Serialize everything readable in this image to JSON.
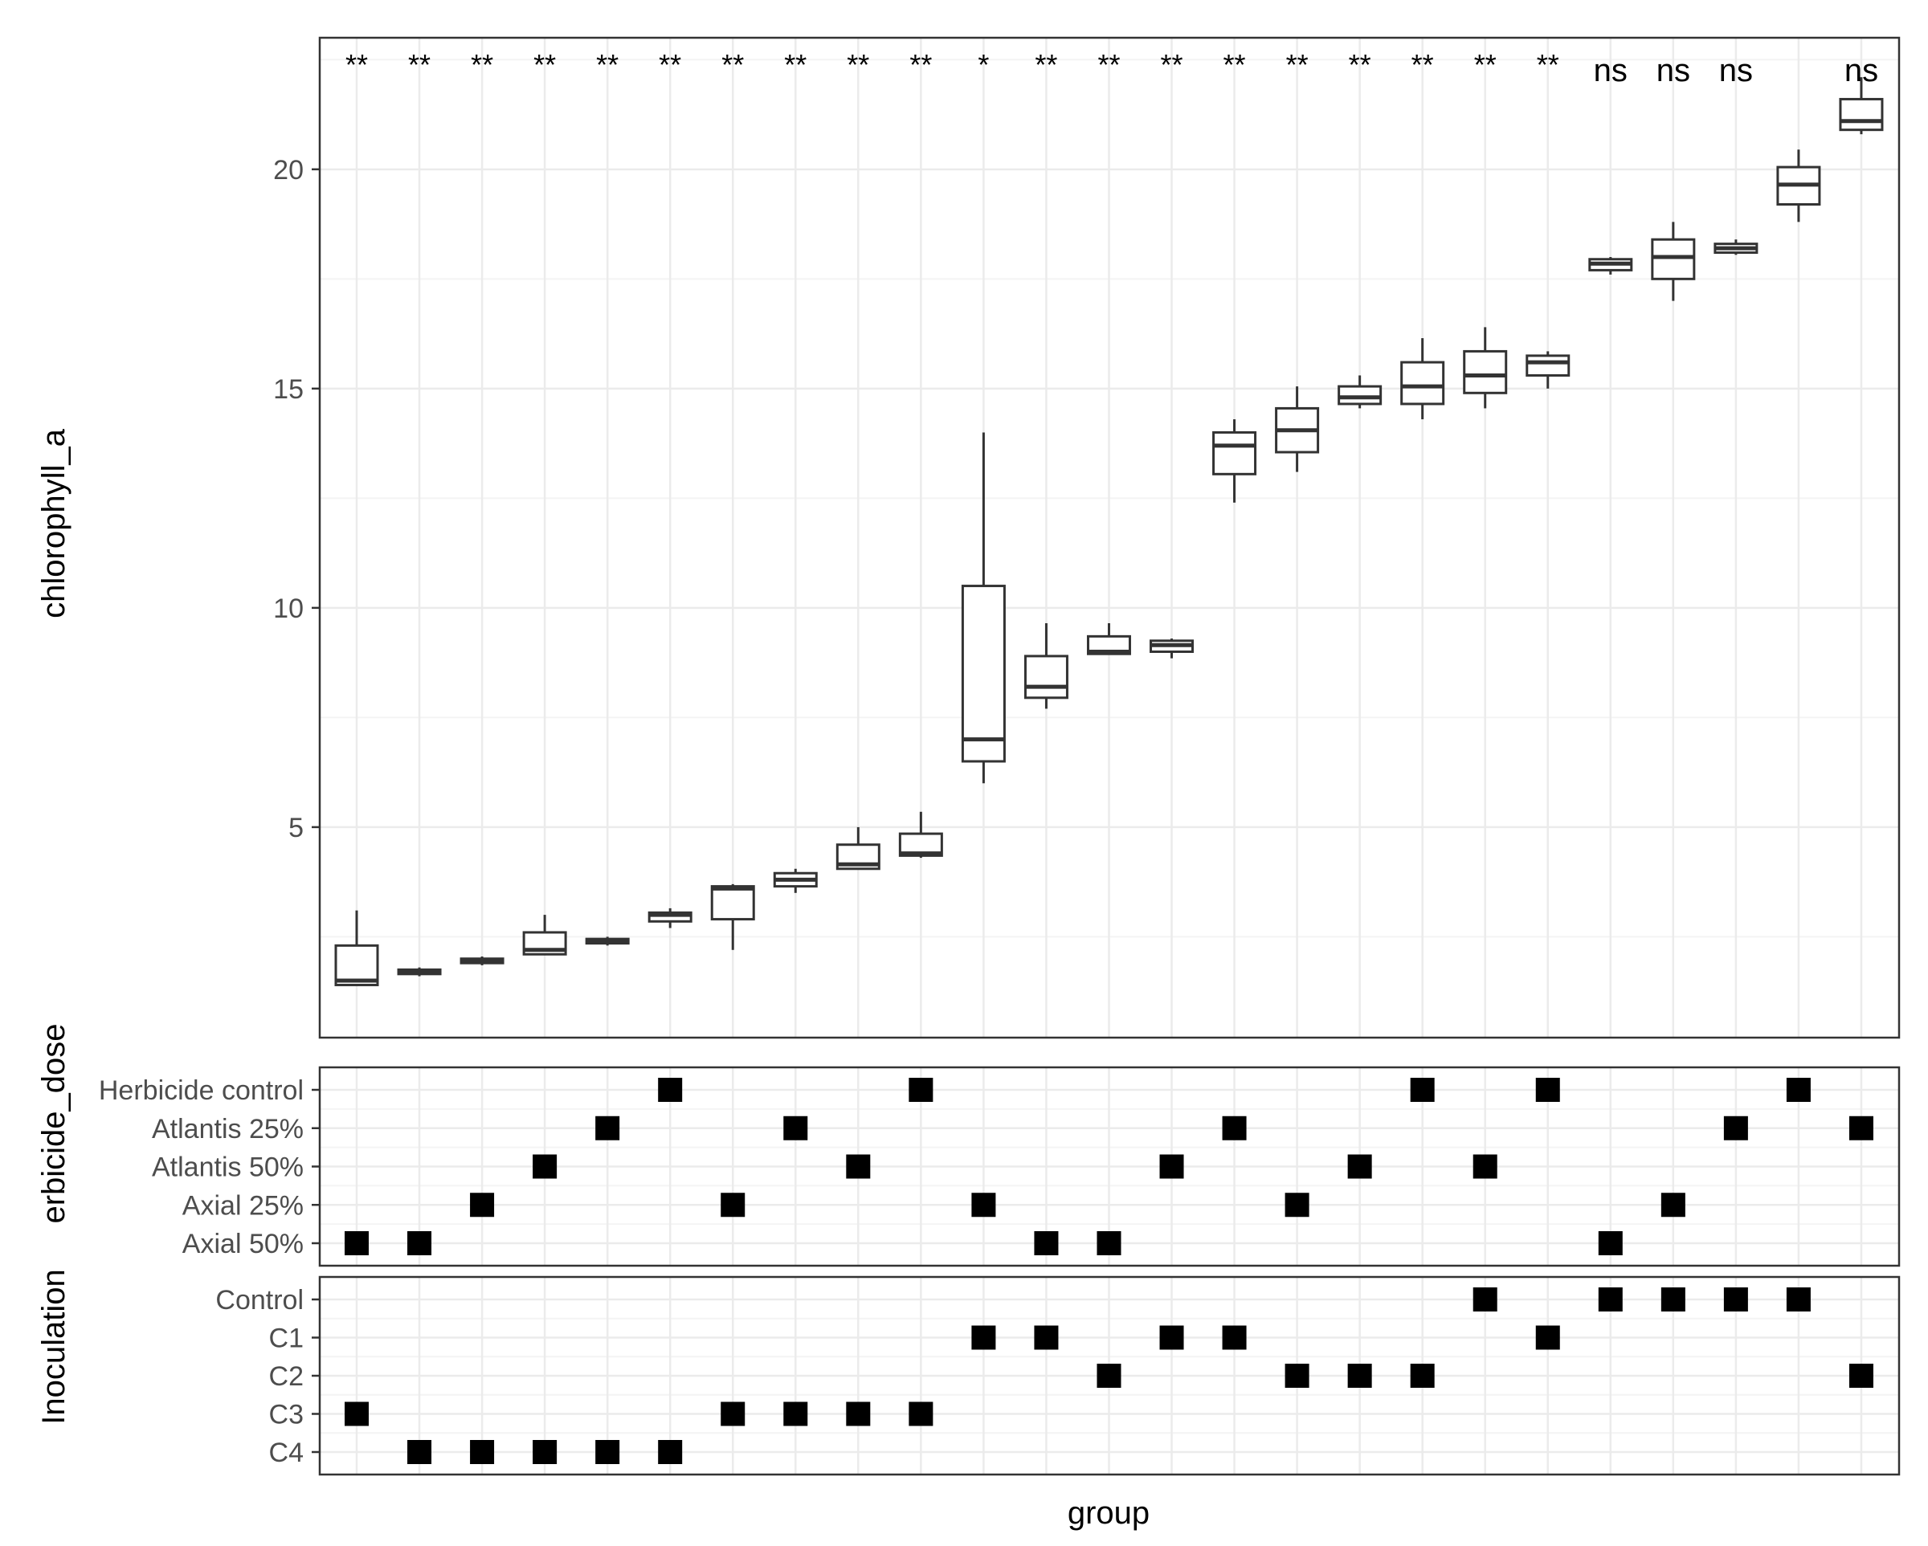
{
  "chart_data": {
    "type": "boxplot",
    "xlabel": "group",
    "boxplot": {
      "ylabel": "chlorophyll_a",
      "ylim": [
        0.2,
        23
      ],
      "yticks": [
        5,
        10,
        15,
        20
      ],
      "ytick_labels": [
        "5",
        "10",
        "15",
        "20"
      ],
      "groups": [
        {
          "sig": "**",
          "whisker_low": 1.4,
          "q1": 1.4,
          "median": 1.5,
          "q3": 2.3,
          "whisker_high": 3.1
        },
        {
          "sig": "**",
          "whisker_low": 1.6,
          "q1": 1.65,
          "median": 1.7,
          "q3": 1.75,
          "whisker_high": 1.8
        },
        {
          "sig": "**",
          "whisker_low": 1.85,
          "q1": 1.9,
          "median": 1.95,
          "q3": 2.0,
          "whisker_high": 2.05
        },
        {
          "sig": "**",
          "whisker_low": 2.1,
          "q1": 2.1,
          "median": 2.2,
          "q3": 2.6,
          "whisker_high": 3.0
        },
        {
          "sig": "**",
          "whisker_low": 2.3,
          "q1": 2.35,
          "median": 2.4,
          "q3": 2.45,
          "whisker_high": 2.5
        },
        {
          "sig": "**",
          "whisker_low": 2.7,
          "q1": 2.85,
          "median": 3.0,
          "q3": 3.05,
          "whisker_high": 3.15
        },
        {
          "sig": "**",
          "whisker_low": 2.2,
          "q1": 2.9,
          "median": 3.6,
          "q3": 3.65,
          "whisker_high": 3.7
        },
        {
          "sig": "**",
          "whisker_low": 3.5,
          "q1": 3.65,
          "median": 3.8,
          "q3": 3.95,
          "whisker_high": 4.05
        },
        {
          "sig": "**",
          "whisker_low": 4.05,
          "q1": 4.05,
          "median": 4.15,
          "q3": 4.6,
          "whisker_high": 5.0
        },
        {
          "sig": "**",
          "whisker_low": 4.3,
          "q1": 4.35,
          "median": 4.4,
          "q3": 4.85,
          "whisker_high": 5.35
        },
        {
          "sig": "*",
          "whisker_low": 6.0,
          "q1": 6.5,
          "median": 7.0,
          "q3": 10.5,
          "whisker_high": 14.0
        },
        {
          "sig": "**",
          "whisker_low": 7.7,
          "q1": 7.95,
          "median": 8.2,
          "q3": 8.9,
          "whisker_high": 9.65
        },
        {
          "sig": "**",
          "whisker_low": 8.95,
          "q1": 8.95,
          "median": 9.0,
          "q3": 9.35,
          "whisker_high": 9.65
        },
        {
          "sig": "**",
          "whisker_low": 8.85,
          "q1": 9.0,
          "median": 9.15,
          "q3": 9.25,
          "whisker_high": 9.3
        },
        {
          "sig": "**",
          "whisker_low": 12.4,
          "q1": 13.05,
          "median": 13.7,
          "q3": 14.0,
          "whisker_high": 14.3
        },
        {
          "sig": "**",
          "whisker_low": 13.1,
          "q1": 13.55,
          "median": 14.05,
          "q3": 14.55,
          "whisker_high": 15.05
        },
        {
          "sig": "**",
          "whisker_low": 14.55,
          "q1": 14.65,
          "median": 14.8,
          "q3": 15.05,
          "whisker_high": 15.3
        },
        {
          "sig": "**",
          "whisker_low": 14.3,
          "q1": 14.65,
          "median": 15.05,
          "q3": 15.6,
          "whisker_high": 16.15
        },
        {
          "sig": "**",
          "whisker_low": 14.55,
          "q1": 14.9,
          "median": 15.3,
          "q3": 15.85,
          "whisker_high": 16.4
        },
        {
          "sig": "**",
          "whisker_low": 15.0,
          "q1": 15.3,
          "median": 15.6,
          "q3": 15.75,
          "whisker_high": 15.85
        },
        {
          "sig": "ns",
          "whisker_low": 17.6,
          "q1": 17.7,
          "median": 17.85,
          "q3": 17.95,
          "whisker_high": 18.0
        },
        {
          "sig": "ns",
          "whisker_low": 17.0,
          "q1": 17.5,
          "median": 18.0,
          "q3": 18.4,
          "whisker_high": 18.8
        },
        {
          "sig": "ns",
          "whisker_low": 18.05,
          "q1": 18.1,
          "median": 18.2,
          "q3": 18.3,
          "whisker_high": 18.4
        },
        {
          "sig": "",
          "whisker_low": 18.8,
          "q1": 19.2,
          "median": 19.65,
          "q3": 20.05,
          "whisker_high": 20.45
        },
        {
          "sig": "ns",
          "whisker_low": 20.8,
          "q1": 20.9,
          "median": 21.1,
          "q3": 21.6,
          "whisker_high": 22.1
        }
      ]
    },
    "dose_panel": {
      "ylabel": "erbicide_dose",
      "levels": [
        "Herbicide control",
        "Atlantis 25%",
        "Atlantis 50%",
        "Axial 25%",
        "Axial 50%"
      ],
      "assignment": [
        "Axial 50%",
        "Axial 50%",
        "Axial 25%",
        "Atlantis 50%",
        "Atlantis 25%",
        "Herbicide control",
        "Axial 25%",
        "Atlantis 25%",
        "Atlantis 50%",
        "Herbicide control",
        "Axial 25%",
        "Axial 50%",
        "Axial 50%",
        "Atlantis 50%",
        "Atlantis 25%",
        "Axial 25%",
        "Atlantis 50%",
        "Herbicide control",
        "Atlantis 50%",
        "Herbicide control",
        "Axial 50%",
        "Axial 25%",
        "Atlantis 25%",
        "Herbicide control",
        "Atlantis 25%"
      ]
    },
    "inoculation_panel": {
      "ylabel": "Inoculation",
      "levels": [
        "Control",
        "C1",
        "C2",
        "C3",
        "C4"
      ],
      "assignment": [
        "C3",
        "C4",
        "C4",
        "C4",
        "C4",
        "C4",
        "C3",
        "C3",
        "C3",
        "C3",
        "C1",
        "C1",
        "C2",
        "C1",
        "C1",
        "C2",
        "C2",
        "C2",
        "Control",
        "C1",
        "Control",
        "Control",
        "Control",
        "Control",
        "C2"
      ]
    }
  }
}
